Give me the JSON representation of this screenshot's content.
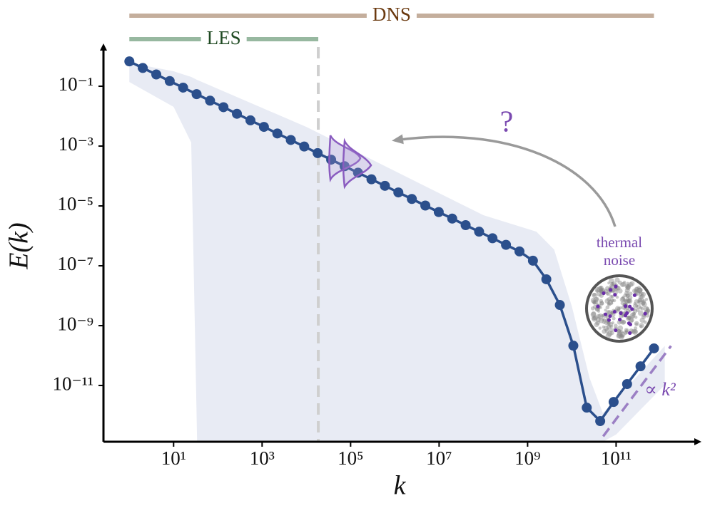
{
  "chart_data": {
    "type": "line",
    "x_label": "k",
    "y_label": "E(k)",
    "log_x": true,
    "log_y": true,
    "xlim": [
      0.26,
      6300000000000.0
    ],
    "ylim": [
      1.32e-13,
      1.83
    ],
    "xticks": [
      {
        "value": 10,
        "label": "10¹"
      },
      {
        "value": 1000,
        "label": "10³"
      },
      {
        "value": 100000,
        "label": "10⁵"
      },
      {
        "value": 10000000.0,
        "label": "10⁷"
      },
      {
        "value": 1000000000.0,
        "label": "10⁹"
      },
      {
        "value": 100000000000.0,
        "label": "10¹¹"
      }
    ],
    "yticks": [
      {
        "value": 0.1,
        "label": "10⁻¹"
      },
      {
        "value": 0.001,
        "label": "10⁻³"
      },
      {
        "value": 1e-05,
        "label": "10⁻⁵"
      },
      {
        "value": 1e-07,
        "label": "10⁻⁷"
      },
      {
        "value": 1e-09,
        "label": "10⁻⁹"
      },
      {
        "value": 1e-11,
        "label": "10⁻¹¹"
      }
    ],
    "color": "#2b4f8c",
    "x": [
      1,
      2.01,
      4.06,
      8.17,
      16.4,
      33.1,
      66.7,
      134,
      270,
      545,
      1100,
      2210,
      4450,
      8950,
      18000,
      36300,
      73100,
      147000,
      296000,
      597000,
      1200000.0,
      2420000.0,
      4880000.0,
      9820000.0,
      19800000.0,
      39800000.0,
      80200000.0,
      161000000.0,
      325000000.0,
      655000000.0,
      1320000000.0,
      2650000000.0,
      5350000000.0,
      10800000000.0,
      21700000000.0,
      43700000000.0,
      87900000000.0,
      177000000000.0,
      356000000000.0,
      718000000000.0
    ],
    "values": [
      0.676,
      0.408,
      0.247,
      0.149,
      0.0899,
      0.0544,
      0.0329,
      0.0199,
      0.012,
      0.00724,
      0.00438,
      0.00264,
      0.0016,
      0.000966,
      0.000583,
      0.000352,
      0.000213,
      0.000129,
      7.76e-05,
      4.69e-05,
      2.83e-05,
      1.71e-05,
      1.03e-05,
      6.25e-06,
      3.78e-06,
      2.28e-06,
      1.38e-06,
      8.32e-07,
      5.02e-07,
      3.02e-07,
      1.48e-07,
      3.55e-08,
      4.9e-09,
      2.14e-10,
      1.82e-12,
      6.46e-13,
      2.82e-12,
      1.12e-11,
      4.37e-11,
      1.74e-10
    ],
    "band": {
      "color": "#e8ebf4",
      "x": [
        1,
        10,
        25,
        34,
        10000,
        100000000.0,
        1580000000.0,
        3980000000.0,
        10000000000.0,
        25100000000.0,
        50100000000.0,
        100000000000.0,
        1260000000000.0
      ],
      "upper": [
        0.61,
        0.316,
        0.204,
        0.163,
        0.00437,
        4.9e-06,
        1.38e-06,
        3.5e-07,
        4.4e-09,
        1.8e-11,
        1.2e-12,
        3.5e-12,
        2.1e-10
      ],
      "lower": [
        0.138,
        0.0204,
        0.00132,
        1.32e-13,
        1.32e-13,
        1.32e-13,
        1.32e-13,
        1.32e-13,
        1.32e-13,
        1.32e-13,
        1.32e-13,
        2.3e-13,
        1.05e-11
      ]
    },
    "vline": {
      "value": 18600,
      "color": "#cfcfcf"
    },
    "ranges": [
      {
        "label": "DNS",
        "from": 1,
        "to": 718000000000.0,
        "color": "#c4ae9c",
        "text_color": "#6b3a10"
      },
      {
        "label": "LES",
        "from": 1,
        "to": 18600,
        "color": "#97b8a0",
        "text_color": "#1f4a22"
      }
    ],
    "reference_line": {
      "label": "∝ k²",
      "x": [
        51000000000.0,
        1740000000000.0
      ],
      "values": [
        2e-13,
        2.1e-10
      ],
      "color": "#9b7fc4"
    },
    "annotations": {
      "question": "?",
      "noise_label": [
        "thermal",
        "noise"
      ]
    }
  }
}
